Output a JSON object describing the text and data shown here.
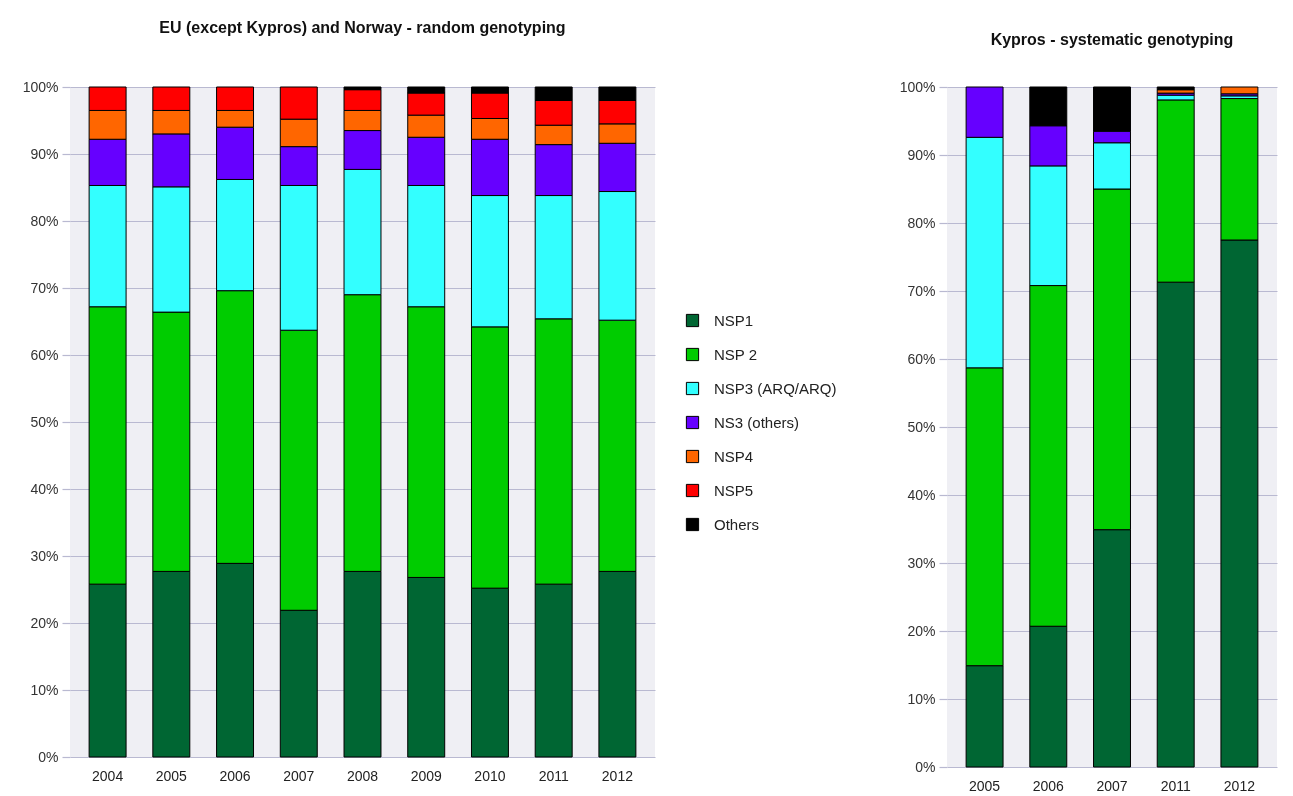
{
  "chart_data": [
    {
      "type": "bar",
      "title": "EU (except Kypros) and Norway - random genotyping",
      "categories": [
        "2004",
        "2005",
        "2006",
        "2007",
        "2008",
        "2009",
        "2010",
        "2011",
        "2012"
      ],
      "stacked": true,
      "series": [
        {
          "name": "NSP1",
          "color": "#006633",
          "values": [
            25.8,
            27.7,
            28.9,
            21.9,
            27.7,
            26.8,
            25.2,
            25.8,
            27.7
          ]
        },
        {
          "name": "NSP 2",
          "color": "#00cc00",
          "values": [
            41.4,
            38.7,
            40.7,
            41.8,
            41.3,
            40.4,
            39.0,
            39.6,
            37.5
          ]
        },
        {
          "name": "NSP3 (ARQ/ARQ)",
          "color": "#33ffff",
          "values": [
            18.1,
            18.7,
            16.6,
            21.6,
            18.7,
            18.1,
            19.6,
            18.4,
            19.2
          ]
        },
        {
          "name": "NS3 (others)",
          "color": "#6600ff",
          "values": [
            6.9,
            7.9,
            7.8,
            5.8,
            5.8,
            7.2,
            8.4,
            7.6,
            7.2
          ]
        },
        {
          "name": "NSP4",
          "color": "#ff6600",
          "values": [
            4.3,
            3.5,
            2.5,
            4.1,
            3.0,
            3.3,
            3.1,
            2.9,
            2.9
          ]
        },
        {
          "name": "NSP5",
          "color": "#ff0000",
          "values": [
            3.5,
            3.5,
            3.5,
            4.8,
            3.1,
            3.3,
            3.8,
            3.7,
            3.5
          ]
        },
        {
          "name": "Others",
          "color": "#000000",
          "values": [
            null,
            null,
            null,
            null,
            0.4,
            0.9,
            0.9,
            2.0,
            2.0
          ]
        }
      ],
      "ylim": [
        0,
        100
      ],
      "yticks": [
        {
          "value": 0,
          "label": "0%"
        },
        {
          "value": 10,
          "label": "10%"
        },
        {
          "value": 20,
          "label": "20%"
        },
        {
          "value": 30,
          "label": "30%"
        },
        {
          "value": 40,
          "label": "40%"
        },
        {
          "value": 50,
          "label": "50%"
        },
        {
          "value": 60,
          "label": "60%"
        },
        {
          "value": 70,
          "label": "70%"
        },
        {
          "value": 80,
          "label": "80%"
        },
        {
          "value": 90,
          "label": "90%"
        },
        {
          "value": 100,
          "label": "100%"
        }
      ],
      "grid": "y",
      "legend": "right"
    },
    {
      "type": "bar",
      "title": "Kypros - systematic genotyping",
      "categories": [
        "2005",
        "2006",
        "2007",
        "2011",
        "2012"
      ],
      "stacked": true,
      "series": [
        {
          "color": "#006633",
          "values": [
            14.9,
            20.7,
            34.9,
            71.3,
            77.5
          ]
        },
        {
          "color": "#00cc00",
          "values": [
            43.8,
            50.1,
            50.1,
            26.8,
            20.8
          ]
        },
        {
          "color": "#33ffff",
          "values": [
            33.9,
            17.6,
            6.8,
            0.7,
            0.4
          ]
        },
        {
          "color": "#6600ff",
          "values": [
            7.4,
            5.9,
            1.7,
            0.3,
            0.3
          ]
        },
        {
          "color": "#ff6600",
          "values": [
            null,
            null,
            null,
            0.5,
            1.0
          ]
        },
        {
          "color": "#000000",
          "values": [
            null,
            5.7,
            6.5,
            0.4,
            null
          ]
        }
      ],
      "ylim": [
        0,
        100
      ],
      "yticks": [
        {
          "value": 0,
          "label": "0%"
        },
        {
          "value": 10,
          "label": "10%"
        },
        {
          "value": 20,
          "label": "20%"
        },
        {
          "value": 30,
          "label": "30%"
        },
        {
          "value": 40,
          "label": "40%"
        },
        {
          "value": 50,
          "label": "50%"
        },
        {
          "value": 60,
          "label": "60%"
        },
        {
          "value": 70,
          "label": "70%"
        },
        {
          "value": 80,
          "label": "80%"
        },
        {
          "value": 90,
          "label": "90%"
        },
        {
          "value": 100,
          "label": "100%"
        }
      ],
      "grid": "y"
    }
  ]
}
